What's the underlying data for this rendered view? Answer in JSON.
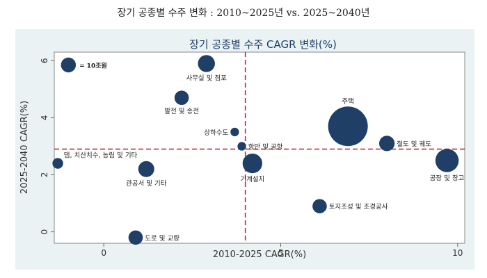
{
  "outer_title": "장기 공종별 수주 변화 : 2010~2025년 vs. 2025~2040년",
  "chart_data": {
    "type": "scatter",
    "title": "장기 공종별 수주 CAGR 변화(%)",
    "xlabel": "2010-2025 CAGR(%)",
    "ylabel": "2025-2040 CAGR(%)",
    "xlim": [
      -1.4,
      10.2
    ],
    "ylim": [
      -0.4,
      6.3
    ],
    "xticks": [
      0,
      5,
      10
    ],
    "yticks": [
      0,
      2,
      4,
      6
    ],
    "ref_x": 4.0,
    "ref_y": 2.9,
    "legend_label": "= 10조원",
    "legend_point": {
      "x": -1.0,
      "y": 5.85,
      "size": 10
    },
    "bubble_color": "#1f3f66",
    "ref_line_color": "#c0283a",
    "points": [
      {
        "label": "사무실 및 점포",
        "x": 2.9,
        "y": 5.9,
        "size": 14,
        "label_pos": "below"
      },
      {
        "label": "발전 및 송전",
        "x": 2.2,
        "y": 4.7,
        "size": 9,
        "label_pos": "below"
      },
      {
        "label": "주택",
        "x": 6.9,
        "y": 3.7,
        "size": 100,
        "label_pos": "above"
      },
      {
        "label": "상하수도",
        "x": 3.7,
        "y": 3.5,
        "size": 2,
        "label_pos": "left"
      },
      {
        "label": "철도 및 궤도",
        "x": 8.0,
        "y": 3.1,
        "size": 11,
        "label_pos": "right"
      },
      {
        "label": "항만 및 공항",
        "x": 3.9,
        "y": 3.0,
        "size": 2,
        "label_pos": "right"
      },
      {
        "label": "공장 및 창고",
        "x": 9.7,
        "y": 2.5,
        "size": 30,
        "label_pos": "below"
      },
      {
        "label": "기계설치",
        "x": 4.2,
        "y": 2.4,
        "size": 20,
        "label_pos": "below"
      },
      {
        "label": "댐, 치산치수, 농림 및 기타",
        "x": -1.3,
        "y": 2.4,
        "size": 4,
        "label_pos": "upright"
      },
      {
        "label": "관공서 및 기타",
        "x": 1.2,
        "y": 2.2,
        "size": 12,
        "label_pos": "below"
      },
      {
        "label": "토지조성 및 조경공사",
        "x": 6.1,
        "y": 0.9,
        "size": 9,
        "label_pos": "right"
      },
      {
        "label": "도로 및 교량",
        "x": 0.9,
        "y": -0.2,
        "size": 9,
        "label_pos": "right"
      }
    ]
  }
}
